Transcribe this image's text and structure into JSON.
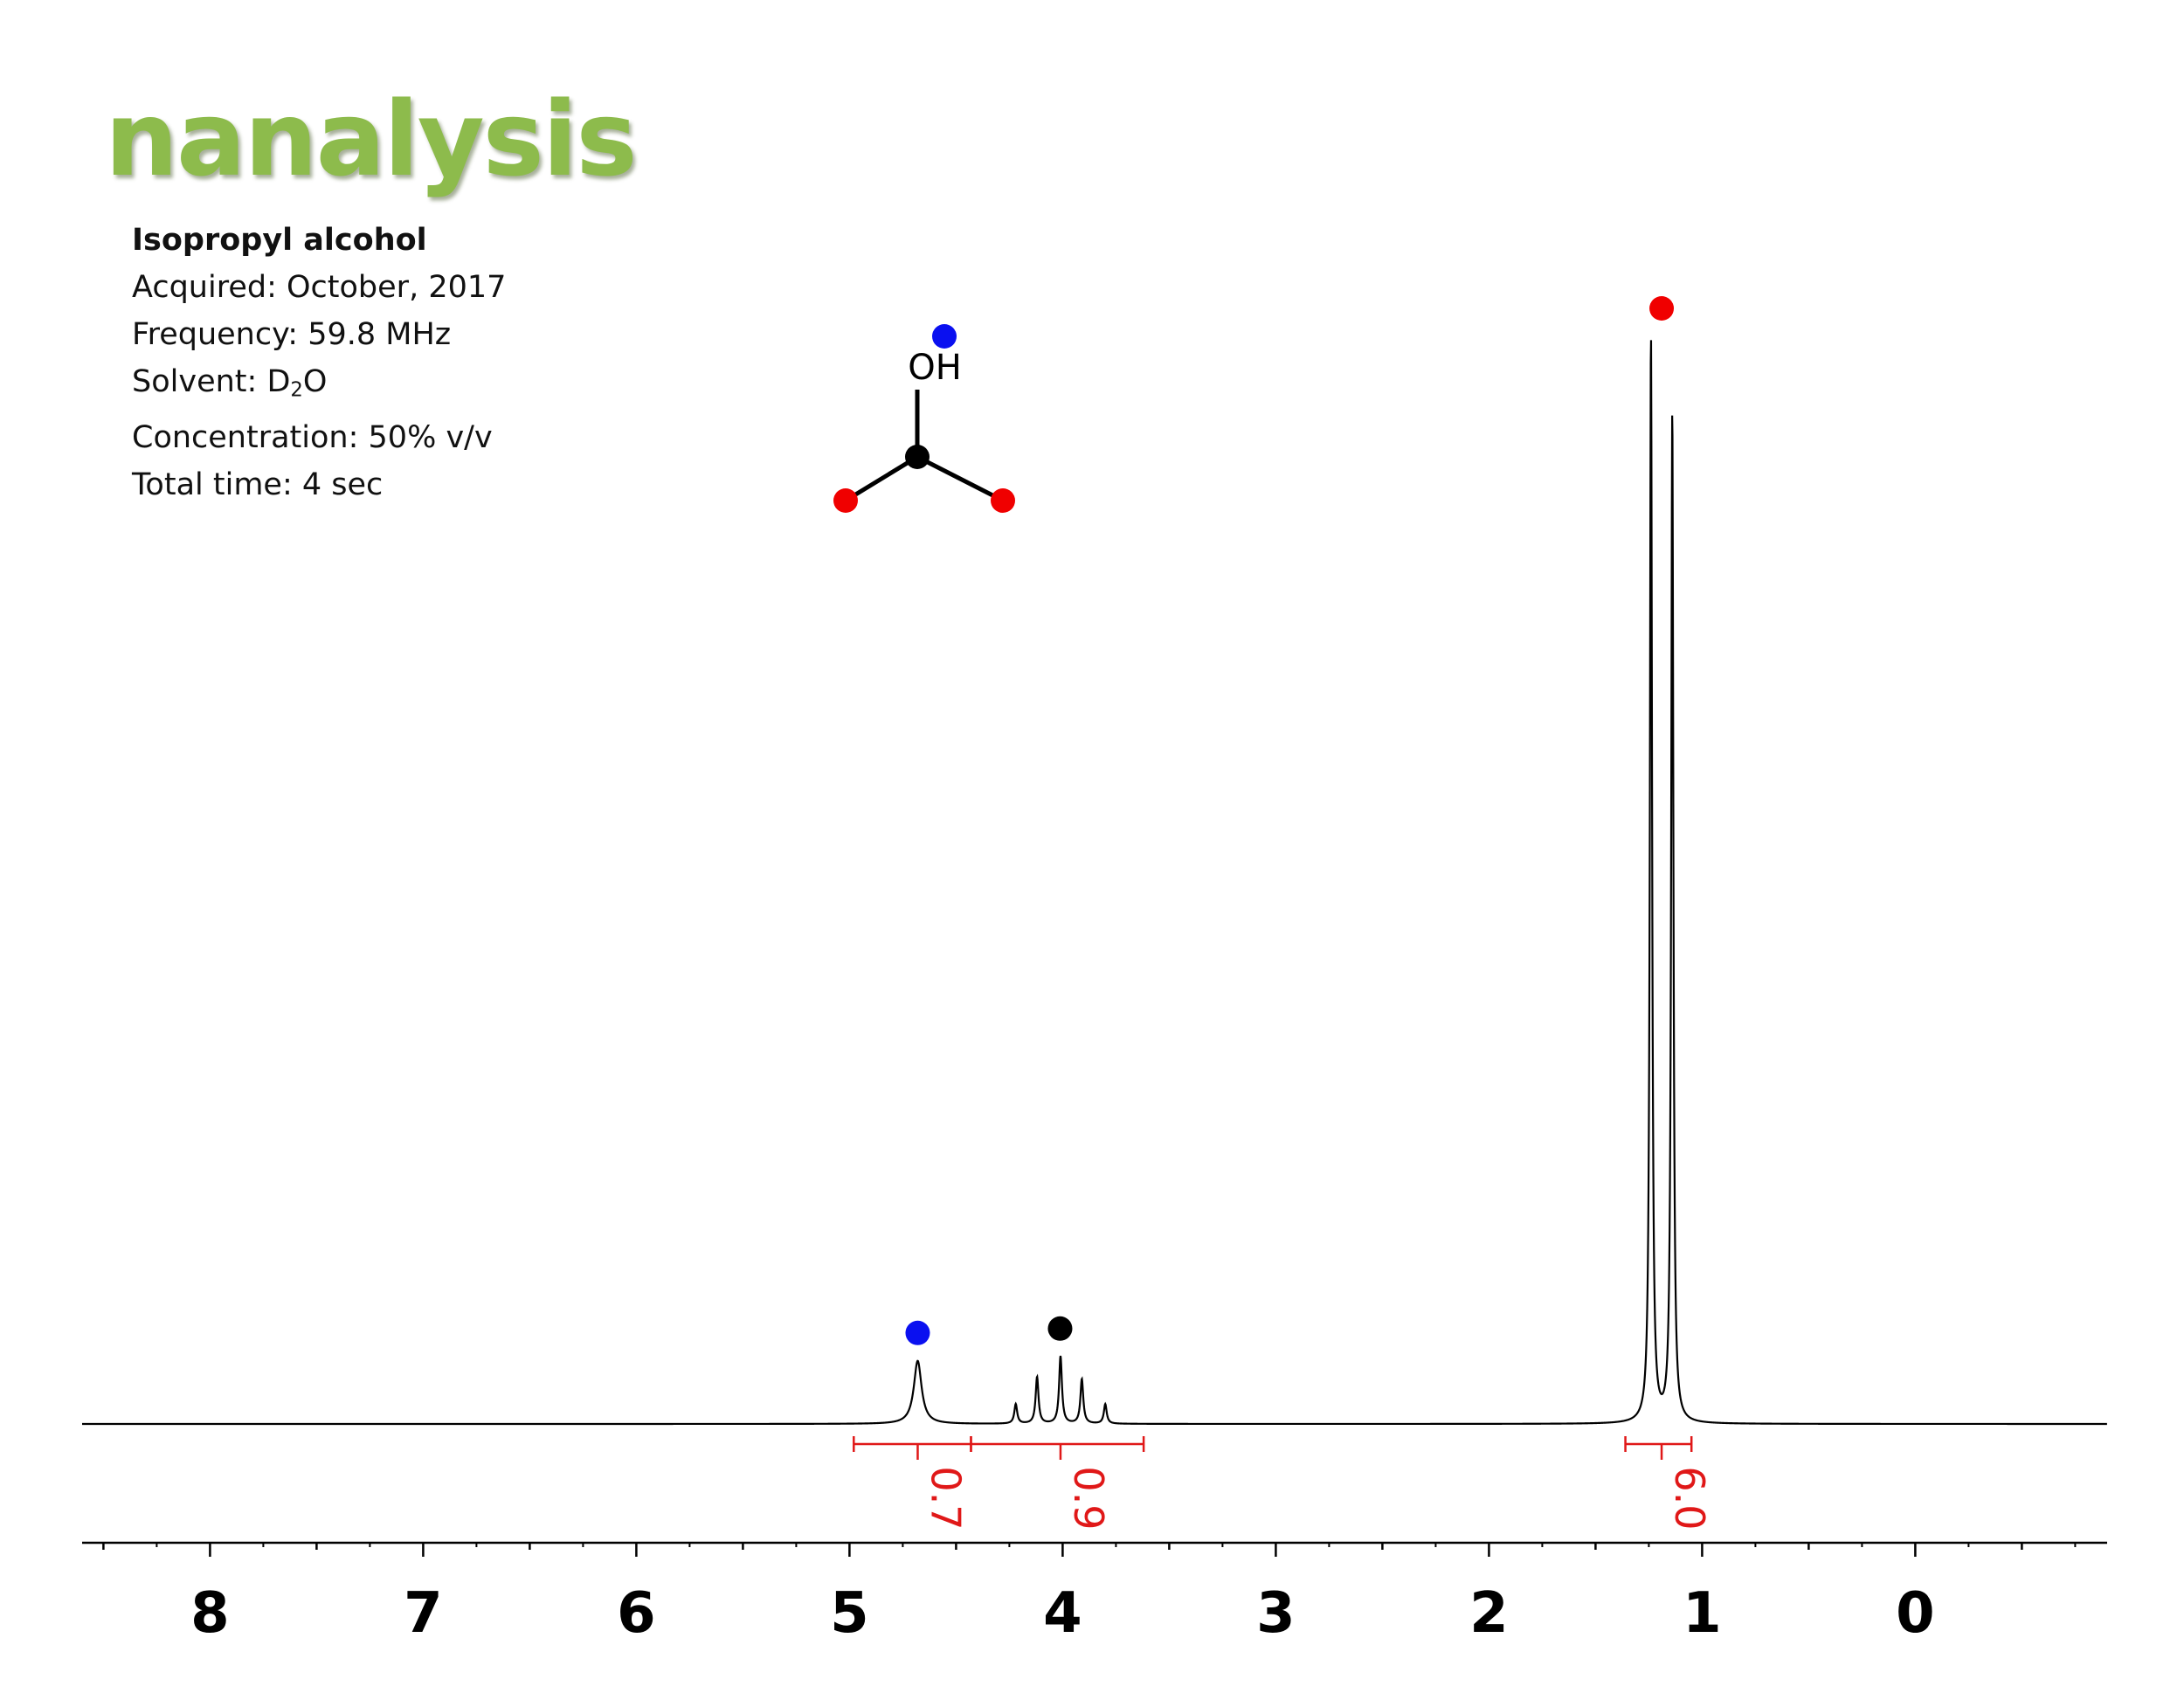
{
  "brand": {
    "logo_text": "nanalysis",
    "logo_color": "#8dbb4c"
  },
  "sample": {
    "title": "Isopropyl alcohol",
    "acquired_label": "Acquired:",
    "acquired": "October, 2017",
    "frequency_label": "Frequency:",
    "frequency": "59.8 MHz",
    "solvent_label": "Solvent:",
    "solvent_base": "D",
    "solvent_sub": "2",
    "solvent_tail": "O",
    "concentration_label": "Concentration:",
    "concentration": "50% v/v",
    "total_time_label": "Total time:",
    "total_time": "4 sec"
  },
  "structure": {
    "oh_label": "OH",
    "colors": {
      "oh": "#0a10f0",
      "ch": "#000000",
      "ch3": "#f00000"
    }
  },
  "chart_data": {
    "type": "line",
    "xlabel": "",
    "ylabel": "",
    "x_reversed": true,
    "xlim": [
      8.6,
      -0.9
    ],
    "ylim": [
      0,
      1.0
    ],
    "x_major_ticks": [
      8,
      7,
      6,
      5,
      4,
      3,
      2,
      1,
      0
    ],
    "x_tick_labels": [
      "8",
      "7",
      "6",
      "5",
      "4",
      "3",
      "2",
      "1",
      "0"
    ],
    "x_minor_step": 0.5,
    "grid": false,
    "peaks": [
      {
        "group": "OH",
        "shift": 4.68,
        "height": 0.058,
        "width": 0.022,
        "marker_color": "#0a10f0"
      },
      {
        "group": "CH",
        "shift": 4.22,
        "height": 0.018,
        "width": 0.008,
        "marker_color": "#000000"
      },
      {
        "group": "CH",
        "shift": 4.12,
        "height": 0.043,
        "width": 0.008,
        "marker_color": "#000000"
      },
      {
        "group": "CH",
        "shift": 4.01,
        "height": 0.062,
        "width": 0.008,
        "marker_color": "#000000"
      },
      {
        "group": "CH",
        "shift": 3.91,
        "height": 0.041,
        "width": 0.008,
        "marker_color": "#000000"
      },
      {
        "group": "CH",
        "shift": 3.8,
        "height": 0.018,
        "width": 0.008,
        "marker_color": "#000000"
      },
      {
        "group": "CH3",
        "shift": 1.24,
        "height": 1.0,
        "width": 0.006,
        "marker_color": "#f00000"
      },
      {
        "group": "CH3",
        "shift": 1.14,
        "height": 0.93,
        "width": 0.006,
        "marker_color": "#f00000"
      }
    ],
    "integrals": [
      {
        "label": "0.7",
        "from": 4.98,
        "to": 4.43
      },
      {
        "label": "0.9",
        "from": 4.43,
        "to": 3.62
      },
      {
        "label": "6.0",
        "from": 1.36,
        "to": 1.05
      }
    ],
    "integral_color": "#e01818"
  }
}
